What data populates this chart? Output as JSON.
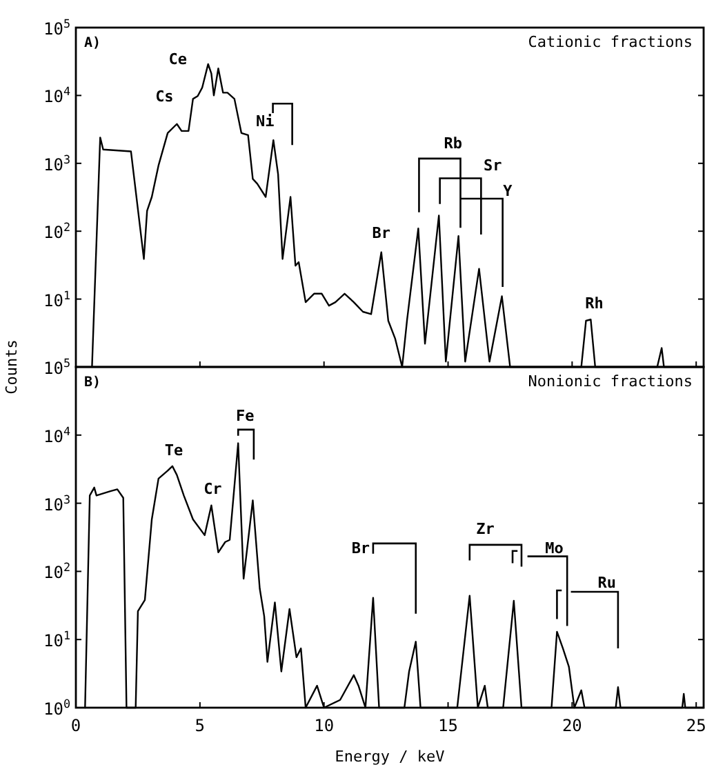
{
  "chart_data": [
    {
      "type": "line",
      "title": "A)",
      "subtitle": "Cationic fractions",
      "ylabel": "Counts",
      "log": "y",
      "grid": false,
      "marker": "none",
      "line_style": "solid",
      "tick_labels": "y",
      "xlim": [
        0,
        25.3
      ],
      "ylim": [
        1,
        100000
      ],
      "xticks": [
        {
          "value": 0,
          "label": null
        },
        {
          "value": 5,
          "label": null
        },
        {
          "value": 10,
          "label": null
        },
        {
          "value": 15,
          "label": null
        },
        {
          "value": 20,
          "label": null
        },
        {
          "value": 25,
          "label": null
        }
      ],
      "yticks": [
        {
          "value": 1,
          "label": null
        },
        {
          "value": 10,
          "label": "10$^{1}$"
        },
        {
          "value": 100,
          "label": "10$^{2}$"
        },
        {
          "value": 1000,
          "label": "10$^{3}$"
        },
        {
          "value": 10000,
          "label": "10$^{4}$"
        },
        {
          "value": 100000,
          "label": "10$^{5}$"
        }
      ],
      "series": [
        {
          "color": "#000000",
          "x": [
            0.65,
            0.98,
            1.1,
            2.22,
            2.74,
            2.87,
            3.06,
            3.33,
            3.7,
            4.07,
            4.26,
            4.54,
            4.72,
            4.91,
            5.09,
            5.33,
            5.46,
            5.56,
            5.74,
            5.93,
            6.11,
            6.39,
            6.67,
            6.94,
            7.13,
            7.31,
            7.65,
            7.96,
            8.15,
            8.33,
            8.65,
            8.85,
            8.98,
            9.26,
            9.6,
            9.91,
            10.2,
            10.46,
            10.83,
            11.2,
            11.57,
            11.9,
            12.31,
            12.59,
            12.87,
            13.15,
            13.35,
            13.8,
            14.07,
            14.63,
            14.91,
            15.42,
            15.69,
            16.25,
            16.67,
            17.17,
            17.5,
            20.37,
            20.56,
            20.75,
            20.93,
            23.43,
            23.61,
            23.7,
            25.3
          ],
          "values": [
            1,
            2400,
            1600,
            1500,
            39,
            200,
            320,
            930,
            2800,
            3800,
            3000,
            3000,
            8900,
            9800,
            13000,
            29000,
            21000,
            10000,
            25000,
            11000,
            11000,
            8900,
            2800,
            2600,
            590,
            500,
            320,
            2200,
            690,
            39,
            320,
            31,
            35,
            9,
            12,
            12,
            8,
            9,
            12,
            9,
            6.5,
            6,
            49,
            4.8,
            2.6,
            1,
            5,
            110,
            2.2,
            170,
            1.2,
            85,
            1.2,
            28,
            1.2,
            11,
            1,
            1,
            4.8,
            5,
            1,
            1,
            1.9,
            1,
            1
          ]
        }
      ],
      "annotations": [
        {
          "text": "Cs",
          "x": 4.07,
          "y": 3800
        },
        {
          "text": "Ce",
          "x": 5.33,
          "y": 29000
        },
        {
          "text": "Ni",
          "x": 7.96,
          "y": 2200
        },
        {
          "text": "Br",
          "x": 12.31,
          "y": 49
        },
        "Rb",
        "Sr",
        "Y",
        {
          "text": "Rh",
          "x": 20.56,
          "y": 4.8
        }
      ]
    },
    {
      "type": "line",
      "title": "B)",
      "subtitle": "Nonionic fractions",
      "xlabel": "Energy / keV",
      "log": "y",
      "grid": false,
      "marker": "none",
      "line_style": "solid",
      "xlim": [
        0,
        25.3
      ],
      "ylim": [
        1,
        100000
      ],
      "xticks": [
        0,
        5,
        10,
        15,
        20,
        25
      ],
      "yticks": [
        {
          "value": 1,
          "label": "10$^{0}$"
        },
        {
          "value": 10,
          "label": "10$^{1}$"
        },
        {
          "value": 100,
          "label": "10$^{2}$"
        },
        {
          "value": 1000,
          "label": "10$^{3}$"
        },
        {
          "value": 10000,
          "label": "10$^{4}$"
        },
        {
          "value": 100000,
          "label": "10$^{5}$"
        }
      ],
      "series": [
        {
          "color": "#000000",
          "x": [
            0.37,
            0.56,
            0.74,
            0.83,
            1.39,
            1.67,
            1.91,
            2.04,
            2.41,
            2.5,
            2.78,
            3.06,
            3.33,
            3.7,
            3.89,
            4.07,
            4.35,
            4.72,
            5.19,
            5.46,
            5.74,
            6.02,
            6.2,
            6.54,
            6.76,
            7.13,
            7.41,
            7.59,
            7.72,
            8.02,
            8.28,
            8.61,
            8.89,
            9.07,
            9.26,
            9.72,
            10.0,
            10.65,
            11.2,
            11.39,
            11.67,
            11.98,
            12.22,
            13.24,
            13.43,
            13.7,
            13.89,
            15.37,
            15.87,
            16.2,
            16.48,
            16.6,
            17.22,
            17.65,
            17.96,
            19.17,
            19.39,
            19.63,
            19.87,
            20.09,
            20.37,
            20.5,
            21.76,
            21.85,
            21.95,
            24.44,
            24.5,
            24.56,
            25.3
          ],
          "values": [
            1,
            1300,
            1700,
            1300,
            1500,
            1600,
            1200,
            1,
            1,
            26,
            38,
            580,
            2300,
            3000,
            3500,
            2600,
            1300,
            580,
            340,
            930,
            190,
            270,
            290,
            7600,
            78,
            1100,
            56,
            22,
            4.7,
            35,
            3.4,
            28,
            5.5,
            7.4,
            1,
            2.1,
            1,
            1.3,
            3,
            2.1,
            1,
            41,
            1,
            1,
            3.4,
            9.3,
            1,
            1,
            44,
            1,
            2.1,
            1,
            1,
            37,
            1,
            1,
            13,
            7.4,
            4,
            1,
            1.8,
            1,
            1,
            2,
            1,
            1,
            1.6,
            1,
            1
          ]
        }
      ],
      "annotations": [
        {
          "text": "Te",
          "x": 3.89,
          "y": 3500
        },
        {
          "text": "Cr",
          "x": 5.46,
          "y": 930
        },
        {
          "text": "Fe",
          "x": 6.54,
          "y": 7600
        },
        {
          "text": "Br",
          "x": 11.98,
          "y": 41
        },
        "Zr",
        {
          "text": "Mo",
          "x": 19.39,
          "y": 13
        },
        "Ru"
      ]
    }
  ]
}
